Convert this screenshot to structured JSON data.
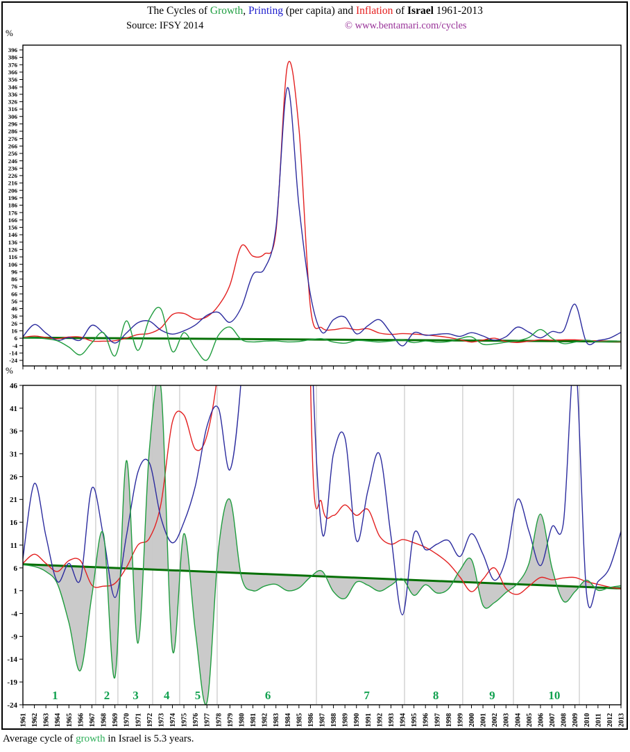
{
  "header": {
    "title_segments": [
      {
        "text": "The Cycles of ",
        "color": "#000000",
        "bold": false
      },
      {
        "text": "Growth",
        "color": "#1e9e40",
        "bold": false
      },
      {
        "text": ", ",
        "color": "#000000",
        "bold": false
      },
      {
        "text": "Printing ",
        "color": "#1a1acd",
        "bold": false
      },
      {
        "text": " (per capita) and ",
        "color": "#000000",
        "bold": false
      },
      {
        "text": "Inflation ",
        "color": "#e51b1b",
        "bold": false
      },
      {
        "text": " of ",
        "color": "#000000",
        "bold": false
      },
      {
        "text": "Israel",
        "color": "#000000",
        "bold": true
      },
      {
        "text": " 1961-2013",
        "color": "#000000",
        "bold": false
      }
    ],
    "source": "Source: IFSY 2014",
    "copyright": "© www.bentamari.com/cycles",
    "copyright_color": "#993399"
  },
  "axis_labels": {
    "top_percent": "%",
    "bottom_percent": "%"
  },
  "chart_data": {
    "type": "line",
    "title": "The Cycles of Growth, Printing (per capita) and Inflation of Israel 1961-2013",
    "xlim": [
      1961,
      2013
    ],
    "x_years": [
      1961,
      1962,
      1963,
      1964,
      1965,
      1966,
      1967,
      1968,
      1969,
      1970,
      1971,
      1972,
      1973,
      1974,
      1975,
      1976,
      1977,
      1978,
      1979,
      1980,
      1981,
      1982,
      1983,
      1984,
      1985,
      1986,
      1987,
      1988,
      1989,
      1990,
      1991,
      1992,
      1993,
      1994,
      1995,
      1996,
      1997,
      1998,
      1999,
      2000,
      2001,
      2002,
      2003,
      2004,
      2005,
      2006,
      2007,
      2008,
      2009,
      2010,
      2011,
      2012,
      2013
    ],
    "series": [
      {
        "name": "Growth",
        "color": "#1f9c3e",
        "values": [
          6.7,
          6.3,
          5.2,
          2.5,
          -6,
          -16.5,
          0,
          13.5,
          -18,
          29.5,
          -10.5,
          32,
          45.5,
          -12,
          13.5,
          -8,
          -23.5,
          10,
          21,
          4,
          1,
          2,
          2.4,
          1,
          1.6,
          4,
          5.3,
          0.8,
          -0.7,
          2.9,
          2.2,
          0.9,
          2.2,
          3.6,
          0,
          2.3,
          0.5,
          1.4,
          5.5,
          7.8,
          -2.2,
          -1.6,
          0.6,
          2.6,
          7,
          17.8,
          6,
          -1.3,
          0.8,
          3.3,
          1.1,
          1.7,
          2.1
        ]
      },
      {
        "name": "Printing (per capita)",
        "color": "#2b2b9e",
        "values": [
          8,
          24.5,
          13,
          3,
          7,
          3.5,
          23.5,
          13,
          -0.5,
          13,
          27,
          29,
          17,
          11.5,
          16,
          24,
          37,
          41,
          27.5,
          48,
          92,
          100,
          155,
          345,
          185,
          65,
          14,
          31,
          34.5,
          12,
          23,
          31,
          13,
          -4.3,
          13.5,
          10,
          11.2,
          12,
          8.5,
          13.5,
          9,
          3.3,
          8,
          21,
          14,
          6.5,
          15,
          16,
          52,
          0.5,
          3,
          6,
          14
        ]
      },
      {
        "name": "Inflation",
        "color": "#e32020",
        "values": [
          7,
          9,
          7,
          5.2,
          7.6,
          7.6,
          2.2,
          2,
          2.6,
          6.1,
          11,
          12.5,
          20,
          38,
          39.5,
          32,
          35,
          50,
          78,
          131,
          117,
          120,
          150,
          375,
          290,
          48,
          20,
          17.5,
          19.8,
          17.5,
          18.8,
          13,
          11.2,
          12.2,
          11.5,
          10.5,
          9,
          7,
          4,
          0.8,
          3.5,
          6,
          1.5,
          0.2,
          2,
          3.9,
          3.4,
          3.8,
          3.9,
          3,
          2.4,
          1.8,
          1.4
        ]
      }
    ],
    "trend_line": {
      "name": "Growth trend",
      "color": "#067006",
      "start_value": 6.8,
      "end_value": 1.5
    },
    "top_chart": {
      "ylim": [
        -24,
        396
      ],
      "ytick_step": 10,
      "grid": false
    },
    "bottom_chart": {
      "ylim": [
        -24,
        46
      ],
      "ytick_step": 5,
      "grid": false,
      "shade_color": "#cacaca",
      "divider_color": "#c8c8c8",
      "divider_years": [
        1967.33,
        1969.26,
        1972.28,
        1974.63,
        1977.89,
        1986.52,
        1994.18,
        1999.24,
        2003.65,
        2009.38
      ],
      "cycle_label_color": "#12a150",
      "cycle_labels": [
        {
          "n": "1",
          "year": 1963.8
        },
        {
          "n": "2",
          "year": 1968.3
        },
        {
          "n": "3",
          "year": 1970.8
        },
        {
          "n": "4",
          "year": 1973.5
        },
        {
          "n": "5",
          "year": 1976.2
        },
        {
          "n": "6",
          "year": 1982.3
        },
        {
          "n": "7",
          "year": 1990.9
        },
        {
          "n": "8",
          "year": 1996.9
        },
        {
          "n": "9",
          "year": 2001.8
        },
        {
          "n": "10",
          "year": 2007.2
        }
      ]
    }
  },
  "caption_segments": [
    {
      "text": "Average cycle of ",
      "color": "#000000"
    },
    {
      "text": "growth",
      "color": "#2faf5a"
    },
    {
      "text": " in Israel  is 5.3 years.",
      "color": "#000000"
    }
  ]
}
